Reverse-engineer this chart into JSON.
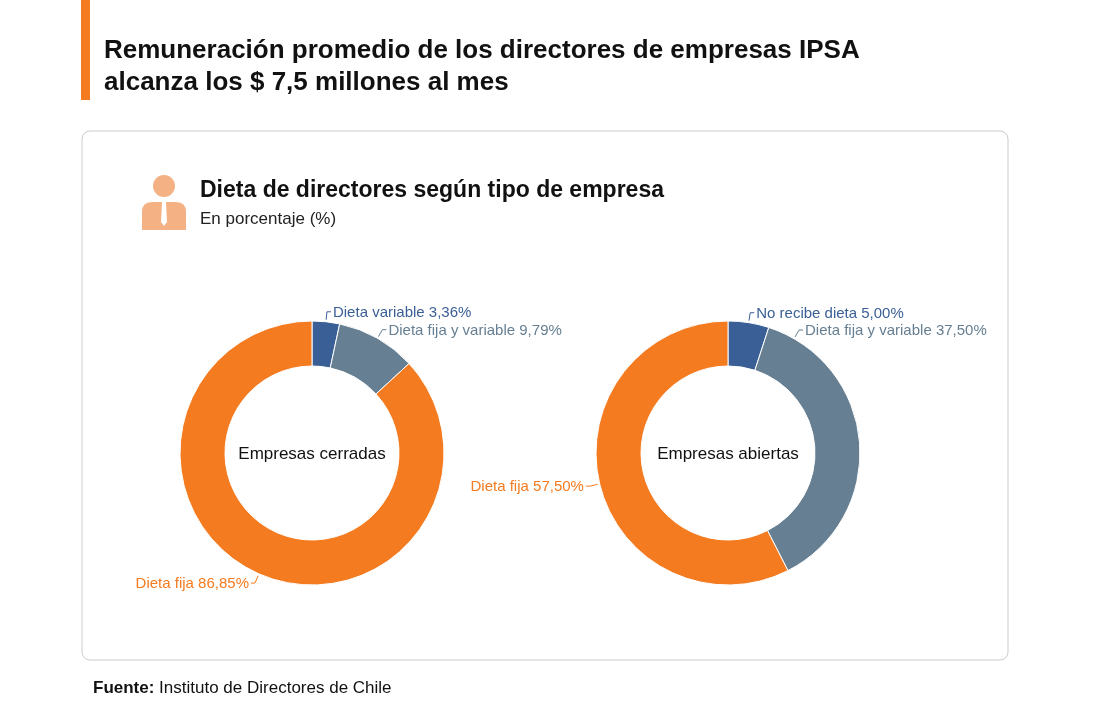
{
  "chart_data": [
    {
      "type": "other",
      "title": "Remuneración promedio de los directores de empresas IPSA alcanza los $ 7,5 millones al mes",
      "subtitle": "Dieta de directores según tipo de empresa",
      "annotations": [
        "En porcentaje (%)",
        "Fuente: Instituto de Directores de Chile"
      ]
    },
    {
      "type": "donut",
      "title": "Empresas cerradas",
      "categories": [
        "Dieta variable",
        "Dieta fija y variable",
        "Dieta fija"
      ],
      "values": [
        3.36,
        9.79,
        86.85
      ],
      "value_labels": [
        "3,36%",
        "9,79%",
        "86,85%"
      ],
      "colors": [
        "#3a5f96",
        "#667f92",
        "#f47b20"
      ]
    },
    {
      "type": "donut",
      "title": "Empresas abiertas",
      "categories": [
        "No recibe dieta",
        "Dieta fija y variable",
        "Dieta fija"
      ],
      "values": [
        5.0,
        37.5,
        57.5
      ],
      "value_labels": [
        "5,00%",
        "37,50%",
        "57,50%"
      ],
      "colors": [
        "#3a5f96",
        "#667f92",
        "#f47b20"
      ]
    }
  ]
}
